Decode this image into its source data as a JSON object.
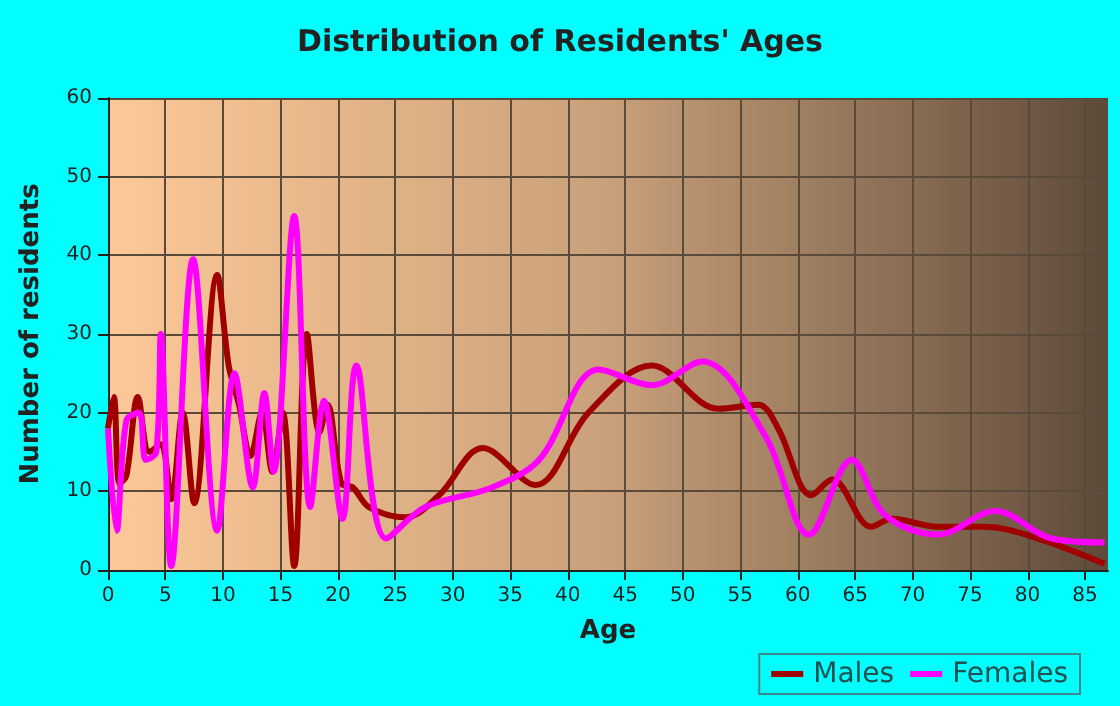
{
  "chart_data": {
    "type": "line",
    "title": "Distribution of Residents' Ages",
    "xlabel": "Age",
    "ylabel": "Number of residents",
    "xlim": [
      0,
      87
    ],
    "xticks": [
      0,
      5,
      10,
      15,
      20,
      25,
      30,
      35,
      40,
      45,
      50,
      55,
      60,
      65,
      70,
      75,
      80,
      85
    ],
    "ylim": [
      0,
      60
    ],
    "yticks": [
      0,
      10,
      20,
      30,
      40,
      50,
      60
    ],
    "grid": true,
    "legend": "bottom right",
    "marker": "none",
    "line_style": "solid",
    "series": [
      {
        "name": "Males",
        "color": "#a00000",
        "x": [
          0,
          0.5,
          1,
          1.6,
          2.6,
          3.6,
          4.6,
          5.5,
          6.5,
          7.5,
          9.5,
          10.5,
          11.4,
          12.4,
          13.4,
          14.3,
          15.2,
          16.2,
          17.3,
          18.4,
          19.1,
          20.3,
          21.3,
          22.7,
          25.9,
          28.8,
          32.6,
          37.2,
          41.8,
          47.3,
          53.1,
          56.6,
          58.3,
          61.2,
          63,
          66.4,
          68.2,
          72.2,
          76.3,
          80.9,
          86.7
        ],
        "values": [
          18,
          22,
          11,
          12,
          22,
          15,
          16,
          9,
          20,
          8.5,
          37.5,
          26,
          21,
          14.5,
          20,
          12.5,
          20,
          0.5,
          30,
          17.5,
          21,
          11,
          10.5,
          8,
          6.7,
          9.5,
          15.5,
          10.8,
          20,
          26,
          20.5,
          21,
          18,
          9.5,
          11.5,
          5.5,
          6.5,
          5.5,
          5.5,
          4,
          0.8
        ]
      },
      {
        "name": "Females",
        "color": "#ff00ff",
        "x": [
          0,
          0.75,
          1.6,
          2.7,
          3.3,
          4.2,
          4.6,
          5.5,
          7.4,
          9.5,
          11,
          12.6,
          13.6,
          14.4,
          16.2,
          17.6,
          18.8,
          20.4,
          21.6,
          24.2,
          27.6,
          33.4,
          37.5,
          42.7,
          47.3,
          51.7,
          57.2,
          61,
          64.7,
          67.6,
          72.2,
          77.2,
          82.1,
          86.7
        ],
        "values": [
          18,
          5,
          19,
          20,
          14,
          15,
          30,
          0.5,
          39.5,
          5,
          25,
          10.5,
          22.5,
          12.5,
          45,
          8,
          21.5,
          6.5,
          26,
          4,
          8,
          10.5,
          14,
          25.5,
          23.5,
          26.5,
          17,
          4.5,
          14,
          7,
          4.5,
          7.5,
          4,
          3.5
        ]
      }
    ]
  }
}
